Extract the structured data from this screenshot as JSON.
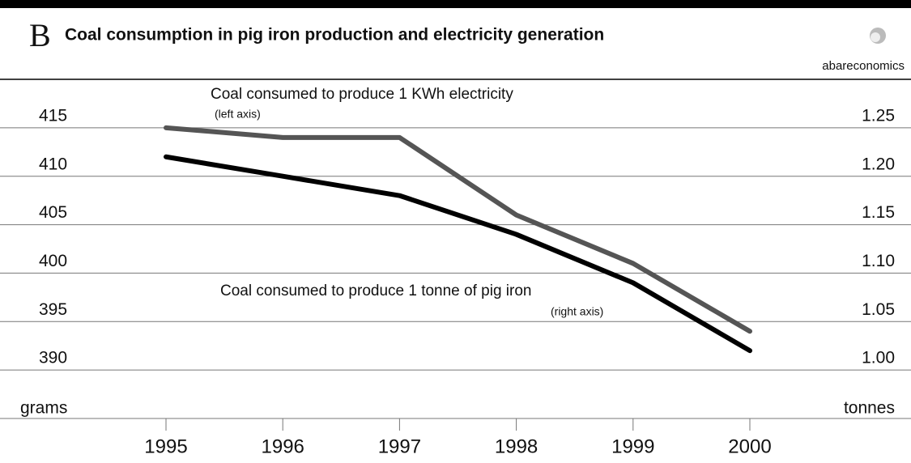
{
  "chart_data": {
    "type": "line",
    "panel": "B",
    "title": "Coal consumption in pig iron production and electricity generation",
    "source": "abareconomics",
    "categories": [
      "1995",
      "1996",
      "1997",
      "1998",
      "1999",
      "2000"
    ],
    "series": [
      {
        "name": "Coal consumed to produce 1 KWh electricity",
        "note": "(left axis)",
        "color": "#555555",
        "values": [
          415,
          414,
          414,
          406,
          401,
          394
        ]
      },
      {
        "name": "Coal consumed to produce 1 tonne of pig iron",
        "note": "(right axis)",
        "color": "#000000",
        "axis": "y2",
        "values": [
          1.22,
          1.2,
          1.18,
          1.14,
          1.09,
          1.02
        ]
      }
    ],
    "ylabel": "grams",
    "y2label": "tonnes",
    "ylim": [
      385,
      420
    ],
    "yticks": [
      390,
      395,
      400,
      405,
      410,
      415
    ],
    "y2lim": [
      0.95,
      1.3
    ],
    "y2ticks": [
      {
        "value": 1.0,
        "label": "1.00"
      },
      1.05,
      {
        "value": 1.1,
        "label": "1.10"
      },
      1.15,
      {
        "value": 1.2,
        "label": "1.20"
      },
      1.25
    ],
    "grid": true
  }
}
